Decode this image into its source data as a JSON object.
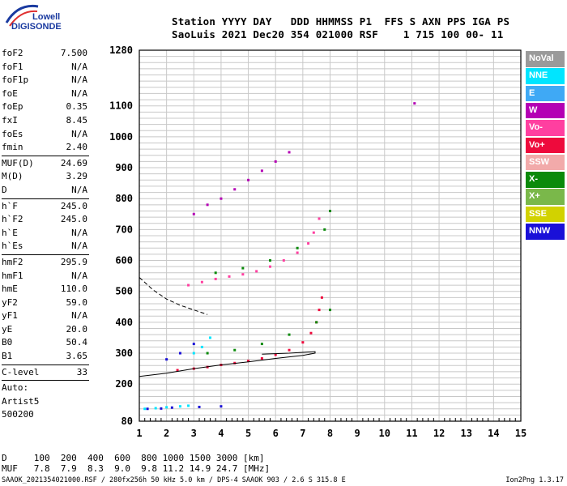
{
  "logo": {
    "line1": "Lowell",
    "line2": "DIGISONDE"
  },
  "header": {
    "line1": "Station YYYY DAY   DDD HHMMSS P1  FFS S AXN PPS IGA PS",
    "line2": "SaoLuis 2021 Dec20 354 021000 RSF    1 715 100 00- 11"
  },
  "params": [
    {
      "label": "foF2",
      "value": "7.500"
    },
    {
      "label": "foF1",
      "value": "N/A"
    },
    {
      "label": "foF1p",
      "value": "N/A"
    },
    {
      "label": "foE",
      "value": "N/A"
    },
    {
      "label": "foEp",
      "value": "0.35"
    },
    {
      "label": "fxI",
      "value": "8.45"
    },
    {
      "label": "foEs",
      "value": "N/A"
    },
    {
      "label": "fmin",
      "value": "2.40"
    },
    {
      "sep": true
    },
    {
      "label": "MUF(D)",
      "value": "24.69"
    },
    {
      "label": "M(D)",
      "value": "3.29"
    },
    {
      "label": "D",
      "value": "N/A"
    },
    {
      "sep": true
    },
    {
      "label": "h`F",
      "value": "245.0"
    },
    {
      "label": "h`F2",
      "value": "245.0"
    },
    {
      "label": "h`E",
      "value": "N/A"
    },
    {
      "label": "h`Es",
      "value": "N/A"
    },
    {
      "sep": true
    },
    {
      "label": "hmF2",
      "value": "295.9"
    },
    {
      "label": "hmF1",
      "value": "N/A"
    },
    {
      "label": "hmE",
      "value": "110.0"
    },
    {
      "label": "yF2",
      "value": "59.0"
    },
    {
      "label": "yF1",
      "value": "N/A"
    },
    {
      "label": "yE",
      "value": "20.0"
    },
    {
      "label": "B0",
      "value": "50.4"
    },
    {
      "label": "B1",
      "value": "3.65"
    },
    {
      "sep": true
    },
    {
      "label": "C-level",
      "value": "33"
    },
    {
      "sep": true
    },
    {
      "text": "Auto:"
    },
    {
      "text": "Artist5"
    },
    {
      "text": "500200"
    }
  ],
  "legend": [
    {
      "label": "NoVal",
      "color": "#9a9a9a"
    },
    {
      "label": "NNE",
      "color": "#00e5ff"
    },
    {
      "label": "E",
      "color": "#3fa9f5"
    },
    {
      "label": "W",
      "color": "#b400b4"
    },
    {
      "label": "Vo-",
      "color": "#ff3fa0"
    },
    {
      "label": "Vo+",
      "color": "#ee0a3c"
    },
    {
      "label": "SSW",
      "color": "#f2aaaa"
    },
    {
      "label": "X-",
      "color": "#0a8a0a"
    },
    {
      "label": "X+",
      "color": "#7ab84a"
    },
    {
      "label": "SSE",
      "color": "#d2d200"
    },
    {
      "label": "NNW",
      "color": "#1a10d8"
    }
  ],
  "chart_data": {
    "type": "scatter",
    "xlabel": "",
    "ylabel": "",
    "xlim": [
      1,
      15
    ],
    "ylim": [
      80,
      1280
    ],
    "x_ticks": [
      "1",
      "2",
      "3",
      "4",
      "5",
      "6",
      "7",
      "8",
      "9",
      "10",
      "11",
      "12",
      "13",
      "14",
      "15"
    ],
    "y_ticks": [
      {
        "value": 80,
        "label": "80"
      },
      {
        "value": 200,
        "label": "200"
      },
      {
        "value": 300,
        "label": "300"
      },
      {
        "value": 400,
        "label": "400"
      },
      {
        "value": 500,
        "label": "500"
      },
      {
        "value": 600,
        "label": "600"
      },
      {
        "value": 700,
        "label": "700"
      },
      {
        "value": 800,
        "label": "800"
      },
      {
        "value": 900,
        "label": "900"
      },
      {
        "value": 1000,
        "label": "1000"
      },
      {
        "value": 1100,
        "label": "1100"
      },
      {
        "value": 1280,
        "label": "1280"
      }
    ],
    "grid": true,
    "series": [
      {
        "color": "#ee0a3c",
        "points": [
          [
            2.4,
            245
          ],
          [
            3.0,
            250
          ],
          [
            3.5,
            255
          ],
          [
            4.0,
            262
          ],
          [
            4.5,
            268
          ],
          [
            5.0,
            275
          ],
          [
            5.5,
            283
          ],
          [
            6.0,
            295
          ],
          [
            6.5,
            310
          ],
          [
            7.0,
            335
          ],
          [
            7.3,
            365
          ],
          [
            7.5,
            400
          ],
          [
            7.6,
            440
          ],
          [
            7.7,
            480
          ]
        ]
      },
      {
        "color": "#ff3fa0",
        "points": [
          [
            2.8,
            520
          ],
          [
            3.3,
            530
          ],
          [
            3.8,
            540
          ],
          [
            4.3,
            548
          ],
          [
            4.8,
            555
          ],
          [
            5.3,
            565
          ],
          [
            5.8,
            580
          ],
          [
            6.3,
            600
          ],
          [
            6.8,
            625
          ],
          [
            7.2,
            655
          ],
          [
            7.4,
            690
          ],
          [
            7.6,
            735
          ]
        ]
      },
      {
        "color": "#b400b4",
        "points": [
          [
            3.0,
            750
          ],
          [
            3.5,
            780
          ],
          [
            4.0,
            800
          ],
          [
            4.5,
            830
          ],
          [
            5.0,
            860
          ],
          [
            5.5,
            890
          ],
          [
            6.0,
            920
          ],
          [
            6.5,
            950
          ]
        ]
      },
      {
        "color": "#0a8a0a",
        "points": [
          [
            3.5,
            300
          ],
          [
            4.5,
            310
          ],
          [
            5.5,
            330
          ],
          [
            6.5,
            360
          ],
          [
            7.5,
            400
          ],
          [
            8.0,
            440
          ],
          [
            3.8,
            560
          ],
          [
            4.8,
            575
          ],
          [
            5.8,
            600
          ],
          [
            6.8,
            640
          ],
          [
            7.8,
            700
          ],
          [
            8.0,
            760
          ]
        ]
      },
      {
        "color": "#00e5ff",
        "points": [
          [
            1.2,
            120
          ],
          [
            1.6,
            122
          ],
          [
            2.0,
            125
          ],
          [
            2.5,
            128
          ],
          [
            2.8,
            130
          ],
          [
            3.0,
            300
          ],
          [
            3.3,
            320
          ],
          [
            3.6,
            350
          ]
        ]
      },
      {
        "color": "#1a10d8",
        "points": [
          [
            1.3,
            120
          ],
          [
            1.8,
            121
          ],
          [
            2.2,
            124
          ],
          [
            3.2,
            126
          ],
          [
            4.0,
            128
          ],
          [
            2.0,
            280
          ],
          [
            2.5,
            300
          ],
          [
            3.0,
            330
          ]
        ]
      },
      {
        "color": "#b400b4",
        "points": [
          [
            11.1,
            1108
          ]
        ]
      }
    ],
    "profile": {
      "points": [
        [
          1,
          225
        ],
        [
          2,
          235
        ],
        [
          3,
          250
        ],
        [
          4,
          262
        ],
        [
          5,
          272
        ],
        [
          6,
          283
        ],
        [
          7,
          293
        ],
        [
          7.45,
          300
        ],
        [
          7.45,
          305
        ],
        [
          6.5,
          300
        ],
        [
          5.5,
          297
        ]
      ]
    },
    "dashed_curve": {
      "points": [
        [
          1,
          545
        ],
        [
          1.5,
          505
        ],
        [
          2,
          475
        ],
        [
          2.5,
          455
        ],
        [
          3,
          440
        ],
        [
          3.5,
          425
        ]
      ]
    }
  },
  "footer": {
    "d_row": "D     100  200  400  600  800 1000 1500 3000 [km]",
    "muf_row": "MUF   7.8  7.9  8.3  9.0  9.8 11.2 14.9 24.7 [MHz]",
    "info": "SAAOK_2021354021000.RSF / 280fx256h 50 kHz 5.0 km / DPS-4 SAAOK 903 / 2.6 S 315.8 E",
    "version": "Ion2Png 1.3.17"
  }
}
